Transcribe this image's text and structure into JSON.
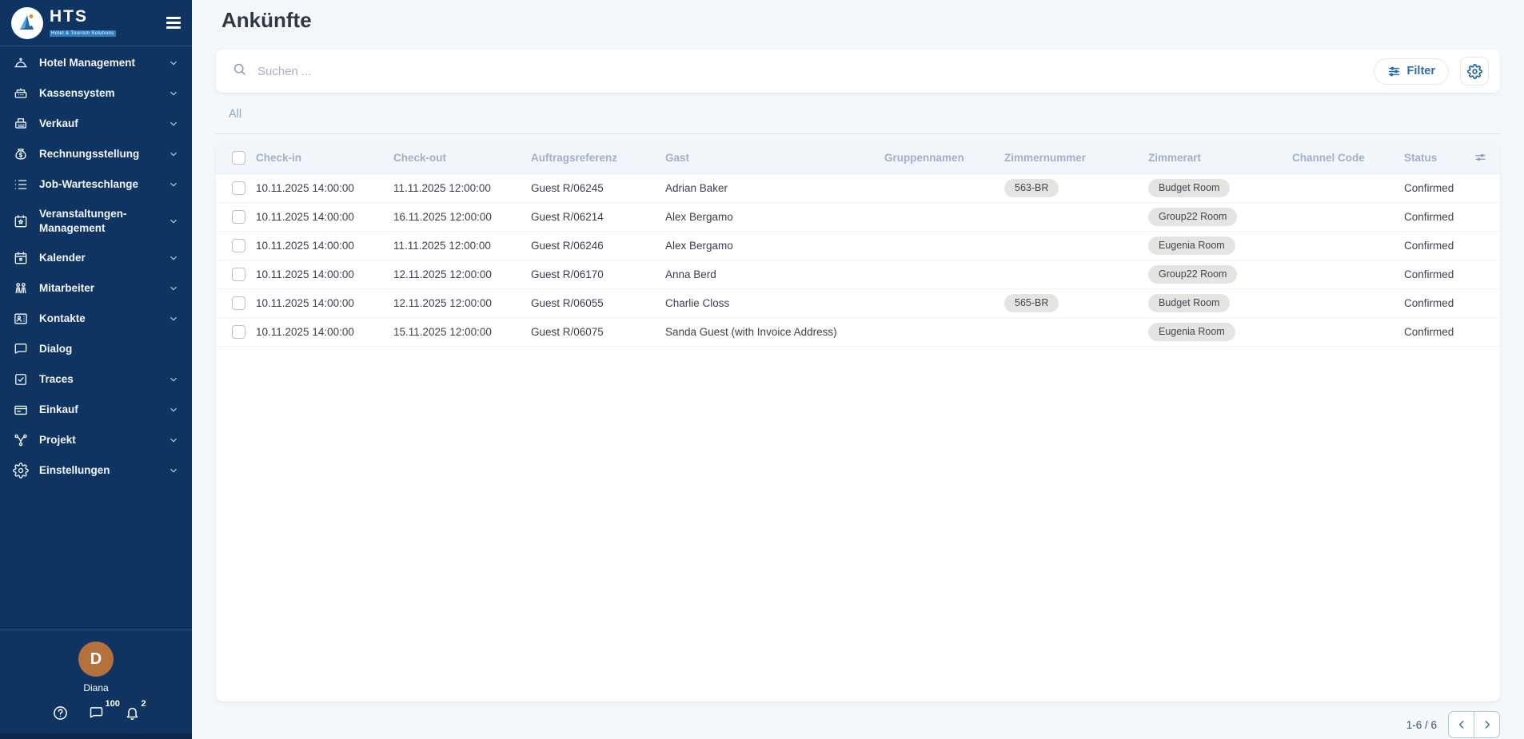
{
  "sidebar": {
    "logo": {
      "text": "HTS",
      "subtext": "Hotel & Tourism Solutions"
    },
    "items": [
      {
        "label": "Hotel Management",
        "icon": "bell-service-icon",
        "chevron": true
      },
      {
        "label": "Kassensystem",
        "icon": "cash-register-icon",
        "chevron": true
      },
      {
        "label": "Verkauf",
        "icon": "pos-terminal-icon",
        "chevron": true
      },
      {
        "label": "Rechnungsstellung",
        "icon": "money-bag-icon",
        "chevron": true
      },
      {
        "label": "Job-Warteschlange",
        "icon": "list-icon",
        "chevron": true
      },
      {
        "label": "Veranstaltungen-Management",
        "icon": "calendar-star-icon",
        "chevron": true
      },
      {
        "label": "Kalender",
        "icon": "calendar-icon",
        "chevron": true
      },
      {
        "label": "Mitarbeiter",
        "icon": "people-icon",
        "chevron": true
      },
      {
        "label": "Kontakte",
        "icon": "contact-card-icon",
        "chevron": true
      },
      {
        "label": "Dialog",
        "icon": "chat-icon",
        "chevron": false
      },
      {
        "label": "Traces",
        "icon": "checkbox-icon",
        "chevron": true
      },
      {
        "label": "Einkauf",
        "icon": "wallet-icon",
        "chevron": true
      },
      {
        "label": "Projekt",
        "icon": "nodes-icon",
        "chevron": true
      },
      {
        "label": "Einstellungen",
        "icon": "gear-icon",
        "chevron": true
      }
    ],
    "user": {
      "initial": "D",
      "name": "Diana"
    },
    "footer_icons": [
      {
        "icon": "help-icon",
        "badge": ""
      },
      {
        "icon": "chat-icon",
        "badge": "100"
      },
      {
        "icon": "bell-icon",
        "badge": "2"
      }
    ]
  },
  "header": {
    "title": "Ankünfte"
  },
  "toolbar": {
    "search_placeholder": "Suchen ...",
    "search_icon": "search-icon",
    "filter_label": "Filter",
    "filter_icon": "filter-sliders-icon",
    "settings_icon": "gear-icon"
  },
  "tabs": {
    "all_label": "All"
  },
  "table": {
    "columns": [
      {
        "key": "check_in",
        "label": "Check-in"
      },
      {
        "key": "check_out",
        "label": "Check-out"
      },
      {
        "key": "ref",
        "label": "Auftragsreferenz"
      },
      {
        "key": "guest",
        "label": "Gast"
      },
      {
        "key": "group",
        "label": "Gruppennamen"
      },
      {
        "key": "room_number",
        "label": "Zimmernummer",
        "badge": true
      },
      {
        "key": "room_type",
        "label": "Zimmerart",
        "badge": true
      },
      {
        "key": "channel",
        "label": "Channel Code"
      },
      {
        "key": "status",
        "label": "Status"
      }
    ],
    "column_settings_icon": "column-sliders-icon",
    "rows": [
      {
        "check_in": "10.11.2025 14:00:00",
        "check_out": "11.11.2025 12:00:00",
        "ref": "Guest R/06245",
        "guest": "Adrian Baker",
        "group": "",
        "room_number": "563-BR",
        "room_type": "Budget Room",
        "channel": "",
        "status": "Confirmed"
      },
      {
        "check_in": "10.11.2025 14:00:00",
        "check_out": "16.11.2025 12:00:00",
        "ref": "Guest R/06214",
        "guest": "Alex Bergamo",
        "group": "",
        "room_number": "",
        "room_type": "Group22 Room",
        "channel": "",
        "status": "Confirmed"
      },
      {
        "check_in": "10.11.2025 14:00:00",
        "check_out": "11.11.2025 12:00:00",
        "ref": "Guest R/06246",
        "guest": "Alex Bergamo",
        "group": "",
        "room_number": "",
        "room_type": "Eugenia Room",
        "channel": "",
        "status": "Confirmed"
      },
      {
        "check_in": "10.11.2025 14:00:00",
        "check_out": "12.11.2025 12:00:00",
        "ref": "Guest R/06170",
        "guest": "Anna Berd",
        "group": "",
        "room_number": "",
        "room_type": "Group22 Room",
        "channel": "",
        "status": "Confirmed"
      },
      {
        "check_in": "10.11.2025 14:00:00",
        "check_out": "12.11.2025 12:00:00",
        "ref": "Guest R/06055",
        "guest": "Charlie Closs",
        "group": "",
        "room_number": "565-BR",
        "room_type": "Budget Room",
        "channel": "",
        "status": "Confirmed"
      },
      {
        "check_in": "10.11.2025 14:00:00",
        "check_out": "15.11.2025 12:00:00",
        "ref": "Guest R/06075",
        "guest": "Sanda Guest (with Invoice Address)",
        "group": "",
        "room_number": "",
        "room_type": "Eugenia Room",
        "channel": "",
        "status": "Confirmed"
      }
    ]
  },
  "pagination": {
    "range_label": "1-6 / 6"
  },
  "colors": {
    "sidebar_navy": "#0f3462",
    "accent_blue": "#2e6fa8",
    "page_bg": "#f5f8fb",
    "header_text": "#a0b0c6",
    "badge_bg": "#e4e4e1",
    "avatar_orange": "#b5713d"
  }
}
